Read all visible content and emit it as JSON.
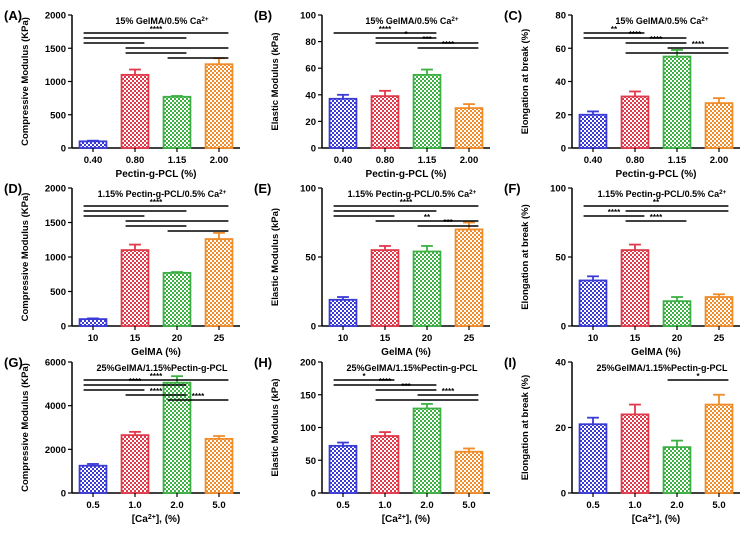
{
  "colors": {
    "blue": "#3a3ad6",
    "red": "#e0394a",
    "green": "#3cb043",
    "orange": "#f08c2a"
  },
  "chart_data": [
    {
      "panel": "(A)",
      "type": "bar",
      "title": "15% GelMA/0.5% Ca2+",
      "xlabel": "Pectin-g-PCL (%)",
      "ylabel": "Compressive Modulus  (KPa)",
      "categories": [
        "0.40",
        "0.80",
        "1.15",
        "2.00"
      ],
      "values": [
        100,
        1100,
        770,
        1260
      ],
      "errors": [
        10,
        80,
        12,
        90
      ],
      "ylim": [
        0,
        2000
      ],
      "yticks": [
        "0",
        "500",
        "1000",
        "1500",
        "2000"
      ],
      "sig": [
        {
          "from": 0,
          "to": 3,
          "label": "****"
        },
        {
          "from": 0,
          "to": 2,
          "label": ""
        },
        {
          "from": 0,
          "to": 1,
          "label": ""
        },
        {
          "from": 1,
          "to": 3,
          "label": ""
        },
        {
          "from": 1,
          "to": 2,
          "label": ""
        },
        {
          "from": 2,
          "to": 3,
          "label": ""
        }
      ]
    },
    {
      "panel": "(B)",
      "type": "bar",
      "title": "15% GelMA/0.5% Ca2+",
      "xlabel": "Pectin-g-PCL (%)",
      "ylabel": "Elastic Modulus (kPa)",
      "categories": [
        "0.40",
        "0.80",
        "1.15",
        "2.00"
      ],
      "values": [
        37,
        39,
        55,
        30
      ],
      "errors": [
        3,
        4,
        4,
        3
      ],
      "ylim": [
        0,
        100
      ],
      "yticks": [
        "0",
        "20",
        "40",
        "60",
        "80",
        "100"
      ],
      "sig": [
        {
          "from": 0,
          "to": 2,
          "label": "****"
        },
        {
          "from": 1,
          "to": 2,
          "label": "*"
        },
        {
          "from": 1,
          "to": 3,
          "label": "***"
        },
        {
          "from": 2,
          "to": 3,
          "label": "****"
        }
      ]
    },
    {
      "panel": "(C)",
      "type": "bar",
      "title": "15% GelMA/0.5% Ca2+",
      "xlabel": "Pectin-g-PCL (%)",
      "ylabel": "Elongation at break (%)",
      "categories": [
        "0.40",
        "0.80",
        "1.15",
        "2.00"
      ],
      "values": [
        20,
        31,
        55,
        27
      ],
      "errors": [
        2,
        3,
        4,
        3
      ],
      "ylim": [
        0,
        80
      ],
      "yticks": [
        "0",
        "20",
        "40",
        "60",
        "80"
      ],
      "sig": [
        {
          "from": 0,
          "to": 1,
          "label": "**"
        },
        {
          "from": 0,
          "to": 2,
          "label": "****"
        },
        {
          "from": 1,
          "to": 2,
          "label": "****"
        },
        {
          "from": 2,
          "to": 3,
          "label": "****"
        },
        {
          "from": 1,
          "to": 3,
          "label": ""
        }
      ]
    },
    {
      "panel": "(D)",
      "type": "bar",
      "title": "1.15% Pectin-g-PCL/0.5% Ca2+",
      "xlabel": "GelMA (%)",
      "ylabel": "Compressive Modulus  (KPa)",
      "categories": [
        "10",
        "15",
        "20",
        "25"
      ],
      "values": [
        100,
        1100,
        770,
        1260
      ],
      "errors": [
        10,
        80,
        12,
        90
      ],
      "ylim": [
        0,
        2000
      ],
      "yticks": [
        "0",
        "500",
        "1000",
        "1500",
        "2000"
      ],
      "sig": [
        {
          "from": 0,
          "to": 3,
          "label": "****"
        },
        {
          "from": 0,
          "to": 2,
          "label": ""
        },
        {
          "from": 0,
          "to": 1,
          "label": ""
        },
        {
          "from": 1,
          "to": 3,
          "label": ""
        },
        {
          "from": 1,
          "to": 2,
          "label": ""
        },
        {
          "from": 2,
          "to": 3,
          "label": ""
        }
      ]
    },
    {
      "panel": "(E)",
      "type": "bar",
      "title": "1.15% Pectin-g-PCL/0.5% Ca2+",
      "xlabel": "GelMA (%)",
      "ylabel": "Elastic Modulus (kPa)",
      "categories": [
        "10",
        "15",
        "20",
        "25"
      ],
      "values": [
        19,
        55,
        54,
        70
      ],
      "errors": [
        2,
        3,
        4,
        5
      ],
      "ylim": [
        0,
        100
      ],
      "yticks": [
        "0",
        "50",
        "100"
      ],
      "sig": [
        {
          "from": 0,
          "to": 3,
          "label": "****"
        },
        {
          "from": 0,
          "to": 2,
          "label": ""
        },
        {
          "from": 0,
          "to": 1,
          "label": ""
        },
        {
          "from": 1,
          "to": 3,
          "label": "**"
        },
        {
          "from": 2,
          "to": 3,
          "label": "***"
        }
      ]
    },
    {
      "panel": "(F)",
      "type": "bar",
      "title": "1.15% Pectin-g-PCL/0.5% Ca2+",
      "xlabel": "GelMA (%)",
      "ylabel": "Elongation at break (%)",
      "categories": [
        "10",
        "15",
        "20",
        "25"
      ],
      "values": [
        33,
        55,
        18,
        21
      ],
      "errors": [
        3,
        4,
        3,
        2
      ],
      "ylim": [
        0,
        100
      ],
      "yticks": [
        "0",
        "50",
        "100"
      ],
      "sig": [
        {
          "from": 0,
          "to": 3,
          "label": "**"
        },
        {
          "from": 1,
          "to": 3,
          "label": ""
        },
        {
          "from": 0,
          "to": 1,
          "label": "****"
        },
        {
          "from": 1,
          "to": 2,
          "label": "****"
        }
      ]
    },
    {
      "panel": "(G)",
      "type": "bar",
      "title": "25%GelMA/1.15%Pectin-g-PCL",
      "xlabel": "[Ca2+], (%)",
      "ylabel": "Compressive Modulus  (KPa)",
      "categories": [
        "0.5",
        "1.0",
        "2.0",
        "5.0"
      ],
      "values": [
        1250,
        2650,
        5050,
        2480
      ],
      "errors": [
        80,
        150,
        300,
        130
      ],
      "ylim": [
        0,
        6000
      ],
      "yticks": [
        "0",
        "2000",
        "4000",
        "6000"
      ],
      "sig": [
        {
          "from": 0,
          "to": 3,
          "label": "****"
        },
        {
          "from": 0,
          "to": 2,
          "label": "****"
        },
        {
          "from": 0,
          "to": 1,
          "label": ""
        },
        {
          "from": 1,
          "to": 2,
          "label": "****"
        },
        {
          "from": 2,
          "to": 3,
          "label": "****"
        }
      ]
    },
    {
      "panel": "(H)",
      "type": "bar",
      "title": "25%GelMA/1.15%Pectin-g-PCL",
      "xlabel": "[Ca2+], (%)",
      "ylabel": "Elastic Modulus (kPa)",
      "categories": [
        "0.5",
        "1.0",
        "2.0",
        "5.0"
      ],
      "values": [
        72,
        87,
        129,
        63
      ],
      "errors": [
        5,
        6,
        7,
        5
      ],
      "ylim": [
        0,
        200
      ],
      "yticks": [
        "0",
        "50",
        "100",
        "150",
        "200"
      ],
      "sig": [
        {
          "from": 0,
          "to": 1,
          "label": "*"
        },
        {
          "from": 0,
          "to": 2,
          "label": "****"
        },
        {
          "from": 1,
          "to": 2,
          "label": "***"
        },
        {
          "from": 2,
          "to": 3,
          "label": "****"
        },
        {
          "from": 1,
          "to": 3,
          "label": ""
        }
      ]
    },
    {
      "panel": "(I)",
      "type": "bar",
      "title": "25%GelMA/1.15%Pectin-g-PCL",
      "xlabel": "[Ca2+], (%)",
      "ylabel": "Elongation at break (%)",
      "categories": [
        "0.5",
        "1.0",
        "2.0",
        "5.0"
      ],
      "values": [
        21,
        24,
        14,
        27
      ],
      "errors": [
        2,
        3,
        2,
        3
      ],
      "ylim": [
        0,
        40
      ],
      "yticks": [
        "0",
        "20",
        "40"
      ],
      "sig": [
        {
          "from": 2,
          "to": 3,
          "label": "*"
        }
      ]
    }
  ]
}
